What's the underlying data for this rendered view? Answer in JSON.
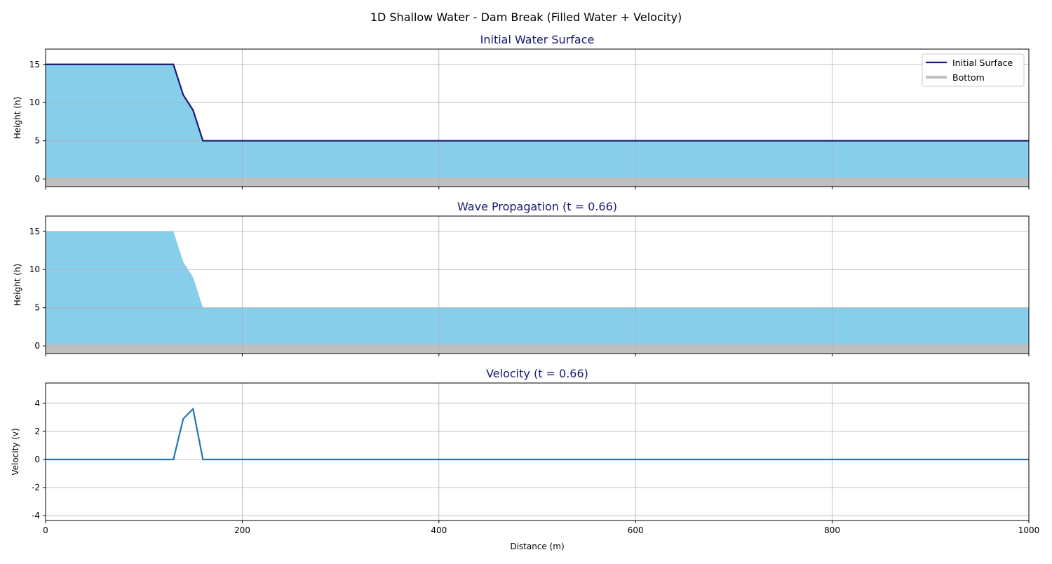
{
  "suptitle": "1D Shallow Water - Dam Break (Filled Water + Velocity)",
  "colors": {
    "water": "#87ceeb",
    "surface": "#191970",
    "bottom": "#c0c0c0",
    "velocity": "#1f77b4",
    "title": "#191970",
    "grid": "#b0b0b0"
  },
  "chart_data": [
    {
      "type": "area",
      "title": "Initial Water Surface",
      "xlabel": "",
      "ylabel": "Height (h)",
      "xlim": [
        0,
        1000
      ],
      "ylim": [
        -1,
        17
      ],
      "xticks": [
        0,
        200,
        400,
        600,
        800,
        1000
      ],
      "yticks": [
        0,
        5,
        10,
        15
      ],
      "grid": true,
      "x": [
        0,
        130,
        140,
        150,
        160,
        1000
      ],
      "series": [
        {
          "name": "Initial Surface",
          "values": [
            15,
            15,
            11,
            9,
            5,
            5
          ]
        }
      ],
      "bottom": 0,
      "legend": {
        "position": "top-right",
        "entries": [
          "Initial Surface",
          "Bottom"
        ]
      }
    },
    {
      "type": "area",
      "title": "Wave Propagation (t = 0.66)",
      "xlabel": "",
      "ylabel": "Height (h)",
      "xlim": [
        0,
        1000
      ],
      "ylim": [
        -1,
        17
      ],
      "xticks": [
        0,
        200,
        400,
        600,
        800,
        1000
      ],
      "yticks": [
        0,
        5,
        10,
        15
      ],
      "grid": true,
      "x": [
        0,
        130,
        140,
        150,
        160,
        1000
      ],
      "series": [
        {
          "name": "Water",
          "values": [
            15,
            15,
            11,
            9,
            5,
            5
          ]
        }
      ],
      "bottom": 0
    },
    {
      "type": "line",
      "title": "Velocity (t = 0.66)",
      "xlabel": "Distance (m)",
      "ylabel": "Velocity (v)",
      "xlim": [
        0,
        1000
      ],
      "ylim": [
        -4.35,
        5.45
      ],
      "xticks": [
        0,
        200,
        400,
        600,
        800,
        1000
      ],
      "xticklabels": [
        "0",
        "200",
        "400",
        "600",
        "800",
        "1000"
      ],
      "yticks": [
        -4,
        -2,
        0,
        2,
        4
      ],
      "grid": true,
      "x": [
        0,
        130,
        140,
        150,
        160,
        1000
      ],
      "series": [
        {
          "name": "Velocity",
          "values": [
            0,
            0,
            2.9,
            3.6,
            0,
            0
          ]
        }
      ]
    }
  ]
}
